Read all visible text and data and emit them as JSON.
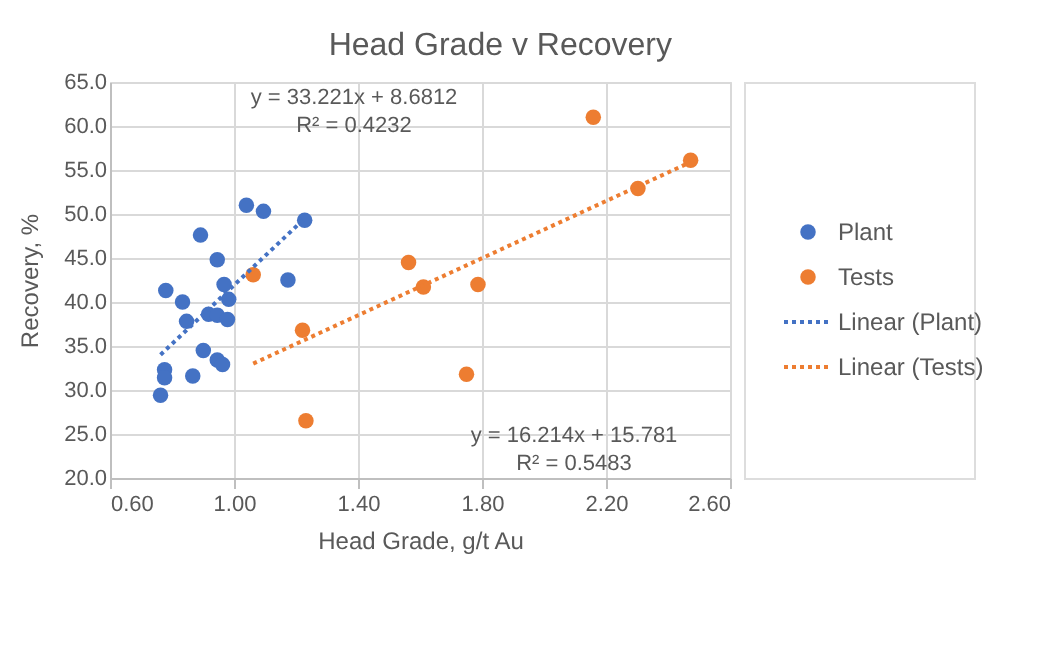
{
  "chart_data": {
    "type": "scatter",
    "title": "Head Grade v Recovery",
    "xlabel": "Head Grade, g/t Au",
    "ylabel": "Recovery, %",
    "xlim": [
      0.6,
      2.6
    ],
    "xticks": [
      {
        "value": 0.6,
        "label": "0.60"
      },
      {
        "value": 1.0,
        "label": "1.00"
      },
      {
        "value": 1.4,
        "label": "1.40"
      },
      {
        "value": 1.8,
        "label": "1.80"
      },
      {
        "value": 2.2,
        "label": "2.20"
      },
      {
        "value": 2.6,
        "label": "2.60"
      }
    ],
    "ylim": [
      20,
      65
    ],
    "yticks": [
      {
        "value": 20,
        "label": "20.0"
      },
      {
        "value": 25,
        "label": "25.0"
      },
      {
        "value": 30,
        "label": "30.0"
      },
      {
        "value": 35,
        "label": "35.0"
      },
      {
        "value": 40,
        "label": "40.0"
      },
      {
        "value": 45,
        "label": "45.0"
      },
      {
        "value": 50,
        "label": "50.0"
      },
      {
        "value": 55,
        "label": "55.0"
      },
      {
        "value": 60,
        "label": "60.0"
      },
      {
        "value": 65,
        "label": "65.0"
      }
    ],
    "grid": true,
    "legend": "right",
    "marker": "circle",
    "series": [
      {
        "name": "Plant",
        "color": "#4472c4",
        "x": [
          1.04,
          1.095,
          1.228,
          0.892,
          0.946,
          1.174,
          0.968,
          0.78,
          0.983,
          0.834,
          0.918,
          0.946,
          0.979,
          0.847,
          0.901,
          0.946,
          0.963,
          0.776,
          0.776,
          0.867,
          0.763
        ],
        "values": [
          51.0,
          50.3,
          49.3,
          47.6,
          44.8,
          42.5,
          42.0,
          41.3,
          40.3,
          40.0,
          38.6,
          38.5,
          38.0,
          37.8,
          34.5,
          33.4,
          32.9,
          32.3,
          31.4,
          31.6,
          29.4
        ]
      },
      {
        "name": "Tests",
        "color": "#ed7d31",
        "x": [
          1.062,
          1.221,
          1.232,
          1.563,
          1.611,
          1.787,
          1.75,
          2.159,
          2.303,
          2.473
        ],
        "values": [
          43.1,
          36.8,
          26.5,
          44.5,
          41.7,
          42.0,
          31.8,
          61.0,
          52.9,
          56.1
        ]
      },
      {
        "name": "Linear (Plant)",
        "type": "line",
        "line_style": "dotted",
        "marker": "none",
        "color": "#4472c4",
        "x": [
          0.763,
          1.228
        ],
        "values": [
          34.0,
          49.5
        ]
      },
      {
        "name": "Linear (Tests)",
        "type": "line",
        "line_style": "dotted",
        "marker": "none",
        "color": "#ed7d31",
        "x": [
          1.062,
          2.473
        ],
        "values": [
          33.0,
          55.9
        ]
      }
    ],
    "annotations": [
      "y = 33.221x + 8.6812\nR² = 0.4232",
      "y = 16.214x + 15.781\nR² = 0.5483"
    ]
  }
}
